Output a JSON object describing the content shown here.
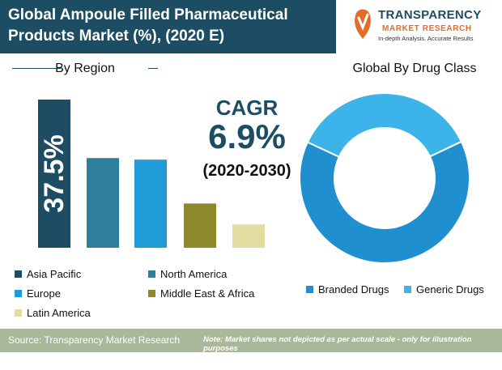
{
  "header": {
    "title_line1": "Global Ampoule Filled Pharmaceutical",
    "title_line2": "Products Market (%), (2020 E)"
  },
  "logo": {
    "brand": "TRANSPARENCY",
    "sub": "MARKET RESEARCH",
    "tagline": "In-depth Analysis. Accurate Results"
  },
  "region_section": {
    "title": "By Region"
  },
  "drug_section": {
    "title": "Global By Drug Class"
  },
  "cagr": {
    "label": "CAGR",
    "value": "6.9%",
    "period": "(2020-2030)"
  },
  "chart_data": [
    {
      "type": "bar",
      "title": "By Region",
      "categories": [
        "Asia Pacific",
        "North America",
        "Europe",
        "Middle East & Africa",
        "Latin America"
      ],
      "values": [
        37.5,
        22.7,
        22.3,
        11.2,
        5.9
      ],
      "data_labels": [
        "37.5%",
        "",
        "",
        "",
        ""
      ],
      "colors": [
        "#1d4d63",
        "#2e7f9b",
        "#1f9bd7",
        "#8c8a2a",
        "#e3dca0"
      ],
      "legend": [
        "Asia Pacific",
        "North America",
        "Europe",
        "Middle East & Africa",
        "Latin America"
      ],
      "legend_position": "bottom",
      "grid": false
    },
    {
      "type": "pie",
      "title": "Global By Drug Class",
      "categories": [
        "Branded Drugs",
        "Generic Drugs"
      ],
      "values": [
        64,
        36
      ],
      "colors": [
        "#1f8fd0",
        "#3cb4ea"
      ],
      "donut": true,
      "legend": [
        "Branded Drugs",
        "Generic Drugs"
      ],
      "legend_position": "bottom"
    }
  ],
  "footer": {
    "source": "Source: Transparency Market Research",
    "note": "Note: Market shares not depicted as per actual scale - only for illustration purposes"
  }
}
